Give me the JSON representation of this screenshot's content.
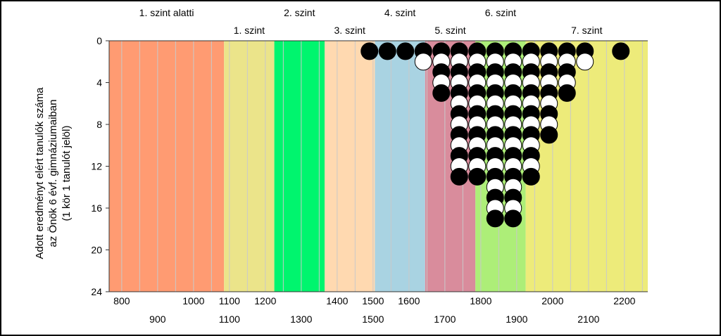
{
  "chart_data": {
    "type": "scatter",
    "title": "",
    "ylabel_lines": [
      "Adott eredményt elért tanulók száma",
      "az Önök 6 évf. gimnáziumaiban",
      "(1 kör 1 tanulót jelöl)"
    ],
    "xlim": [
      765,
      2265
    ],
    "ylim": [
      0,
      24
    ],
    "x_ticks_top_row": [
      800,
      1000,
      1100,
      1200,
      1400,
      1500,
      1600,
      1800,
      2000,
      2200
    ],
    "x_ticks_bottom_row": [
      900,
      1100,
      1300,
      1500,
      1700,
      1900,
      2100
    ],
    "y_ticks": [
      0,
      4,
      8,
      12,
      16,
      20,
      24
    ],
    "levels": [
      {
        "label": "1. szint alatti",
        "from": 765,
        "to": 1085,
        "color": "#FF9B72",
        "label_row": "upper"
      },
      {
        "label": "1. szint",
        "from": 1085,
        "to": 1225,
        "color": "#EBE48A",
        "label_row": "lower"
      },
      {
        "label": "2. szint",
        "from": 1225,
        "to": 1365,
        "color": "#00F56E",
        "label_row": "upper"
      },
      {
        "label": "3. szint",
        "from": 1365,
        "to": 1505,
        "color": "#FFD9B0",
        "label_row": "lower"
      },
      {
        "label": "4. szint",
        "from": 1505,
        "to": 1645,
        "color": "#A9D3E2",
        "label_row": "upper"
      },
      {
        "label": "5. szint",
        "from": 1645,
        "to": 1785,
        "color": "#D98C9C",
        "label_row": "lower"
      },
      {
        "label": "6. szint",
        "from": 1785,
        "to": 1925,
        "color": "#ADEE78",
        "label_row": "upper"
      },
      {
        "label": "7. szint",
        "from": 1925,
        "to": 2265,
        "color": "#EDEB7A",
        "label_row": "lower"
      }
    ],
    "series": [
      {
        "marker": "black-circle",
        "x": [
          1490,
          1540,
          1590,
          1640,
          1690,
          1740,
          1790,
          1840,
          1890,
          1940,
          1990,
          2040,
          2090,
          2190
        ],
        "y": [
          1,
          1,
          1,
          1,
          3,
          7,
          7,
          9,
          9,
          7,
          5,
          3,
          1,
          1
        ]
      },
      {
        "marker": "white-circle",
        "x": [
          1640,
          1690,
          1740,
          1790,
          1840,
          1890,
          1940,
          1990,
          2040,
          2090
        ],
        "y": [
          1,
          2,
          3,
          3,
          4,
          5,
          3,
          2,
          1,
          1
        ]
      }
    ],
    "stack_pattern": "per x: black and white circles alternate, starting with black at y=1"
  },
  "colors": {
    "grid": "#c9c9c9",
    "axis": "#333333",
    "black_circle": "#000000",
    "white_circle": "#ffffff"
  }
}
